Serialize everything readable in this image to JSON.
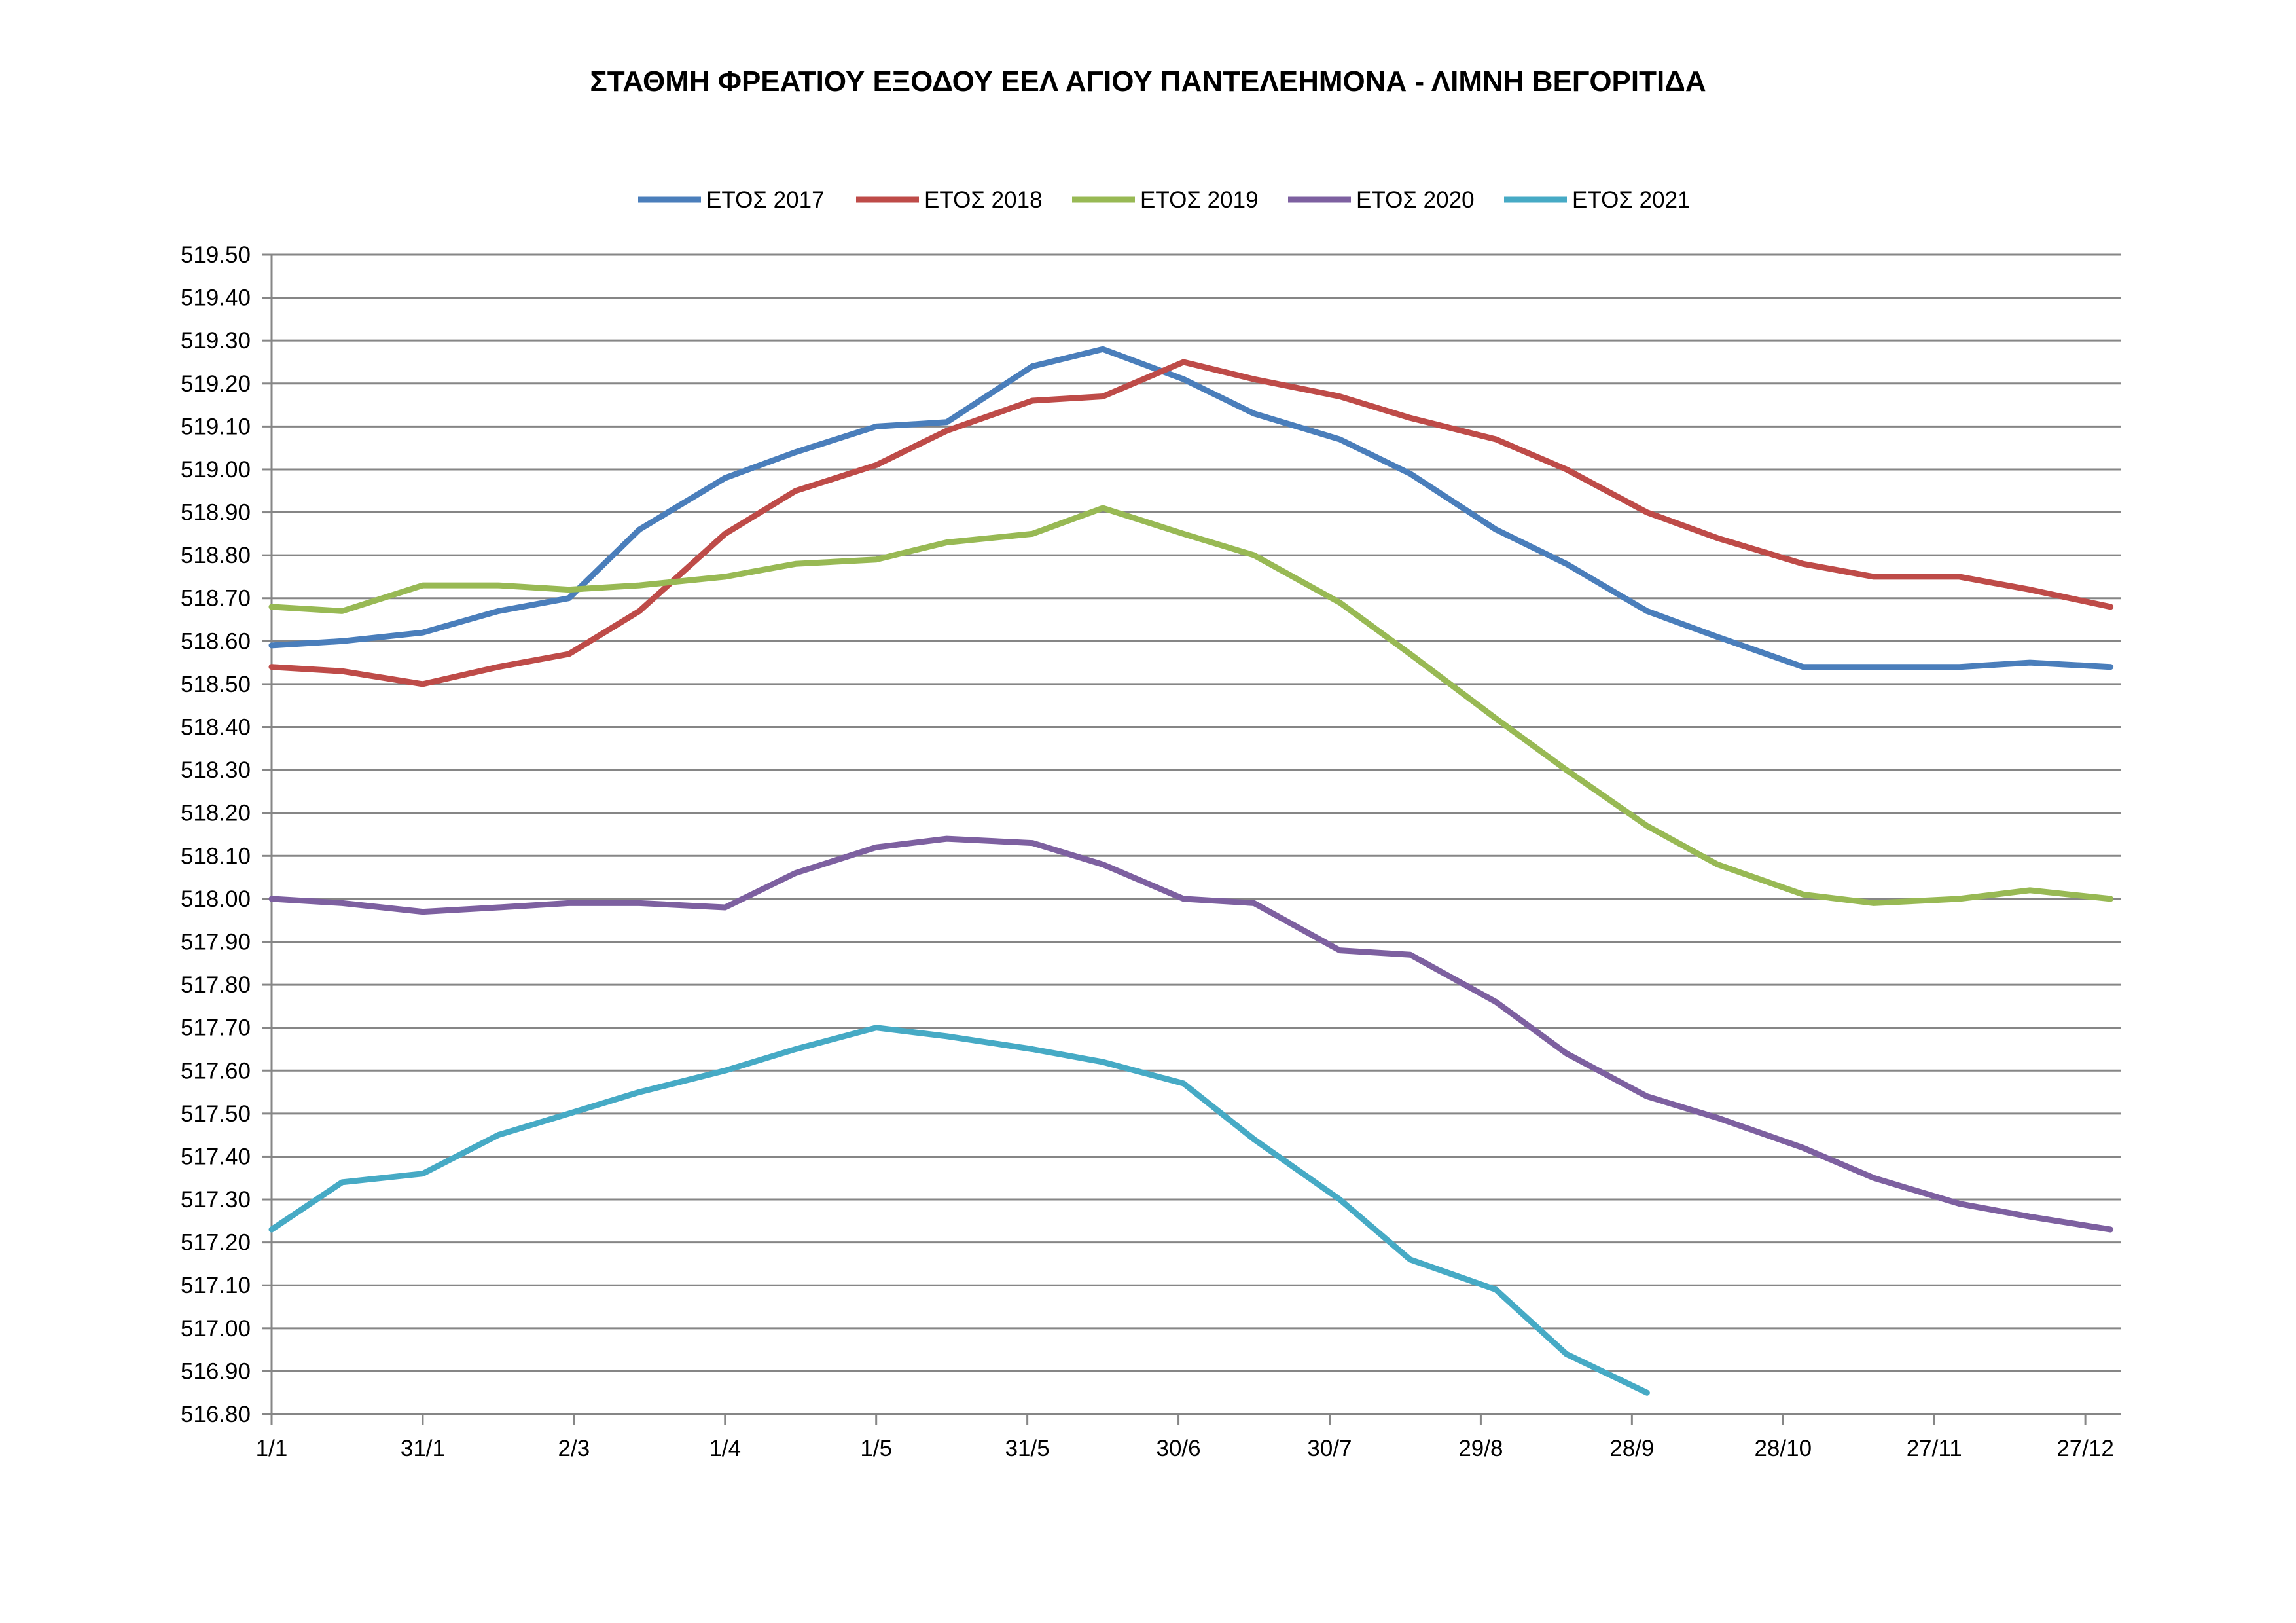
{
  "chart_data": {
    "type": "line",
    "title": "ΣΤΑΘΜΗ ΦΡΕΑΤΙΟΥ ΕΞΟΔΟΥ ΕΕΛ ΑΓΙΟΥ ΠΑΝΤΕΛΕΗΜΟΝΑ - ΛΙΜΝΗ ΒΕΓΟΡΙΤΙΔΑ",
    "xlabel": "",
    "ylabel": "",
    "ylim": [
      516.8,
      519.5
    ],
    "yticks": [
      "516.80",
      "516.90",
      "517.00",
      "517.10",
      "517.20",
      "517.30",
      "517.40",
      "517.50",
      "517.60",
      "517.70",
      "517.80",
      "517.90",
      "518.00",
      "518.10",
      "518.20",
      "518.30",
      "518.40",
      "518.50",
      "518.60",
      "518.70",
      "518.80",
      "518.90",
      "519.00",
      "519.10",
      "519.20",
      "519.30",
      "519.40",
      "519.50"
    ],
    "xlim_day": [
      1,
      368
    ],
    "xticks": [
      {
        "label": "1/1",
        "day": 1
      },
      {
        "label": "31/1",
        "day": 31
      },
      {
        "label": "2/3",
        "day": 61
      },
      {
        "label": "1/4",
        "day": 91
      },
      {
        "label": "1/5",
        "day": 121
      },
      {
        "label": "31/5",
        "day": 151
      },
      {
        "label": "30/6",
        "day": 181
      },
      {
        "label": "30/7",
        "day": 211
      },
      {
        "label": "29/8",
        "day": 241
      },
      {
        "label": "28/9",
        "day": 271
      },
      {
        "label": "28/10",
        "day": 301
      },
      {
        "label": "27/11",
        "day": 331
      },
      {
        "label": "27/12",
        "day": 361
      }
    ],
    "x_day": [
      1,
      15,
      31,
      46,
      60,
      74,
      91,
      105,
      121,
      135,
      152,
      166,
      182,
      196,
      213,
      227,
      244,
      258,
      274,
      288,
      305,
      319,
      336,
      350,
      366
    ],
    "grid": true,
    "legend_position": "top",
    "series": [
      {
        "name": "ΕΤΟΣ 2017",
        "color": "#4a7ebb",
        "values": [
          518.59,
          518.6,
          518.62,
          518.67,
          518.7,
          518.86,
          518.98,
          519.04,
          519.1,
          519.11,
          519.24,
          519.28,
          519.21,
          519.13,
          519.07,
          518.99,
          518.86,
          518.78,
          518.67,
          518.61,
          518.54,
          518.54,
          518.54,
          518.55,
          518.54
        ]
      },
      {
        "name": "ΕΤΟΣ 2018",
        "color": "#be4b48",
        "values": [
          518.54,
          518.53,
          518.5,
          518.54,
          518.57,
          518.67,
          518.85,
          518.95,
          519.01,
          519.09,
          519.16,
          519.17,
          519.25,
          519.21,
          519.17,
          519.12,
          519.07,
          519.0,
          518.9,
          518.84,
          518.78,
          518.75,
          518.75,
          518.72,
          518.68
        ]
      },
      {
        "name": "ΕΤΟΣ 2019",
        "color": "#98b954",
        "values": [
          518.68,
          518.67,
          518.73,
          518.73,
          518.72,
          518.73,
          518.75,
          518.78,
          518.79,
          518.83,
          518.85,
          518.91,
          518.85,
          518.8,
          518.69,
          518.57,
          518.42,
          518.3,
          518.17,
          518.08,
          518.01,
          517.99,
          518.0,
          518.02,
          518.0
        ]
      },
      {
        "name": "ΕΤΟΣ 2020",
        "color": "#7d60a0",
        "values": [
          518.0,
          517.99,
          517.97,
          517.98,
          517.99,
          517.99,
          517.98,
          518.06,
          518.12,
          518.14,
          518.13,
          518.08,
          518.0,
          517.99,
          517.88,
          517.87,
          517.76,
          517.64,
          517.54,
          517.49,
          517.42,
          517.35,
          517.29,
          517.26,
          517.23
        ]
      },
      {
        "name": "ΕΤΟΣ 2021",
        "color": "#46aac5",
        "values": [
          517.23,
          517.34,
          517.36,
          517.45,
          517.5,
          517.55,
          517.6,
          517.65,
          517.7,
          517.68,
          517.65,
          517.62,
          517.57,
          517.44,
          517.3,
          517.16,
          517.09,
          516.94,
          516.85
        ]
      }
    ]
  },
  "colors": {
    "grid": "#868686",
    "axis": "#868686"
  }
}
